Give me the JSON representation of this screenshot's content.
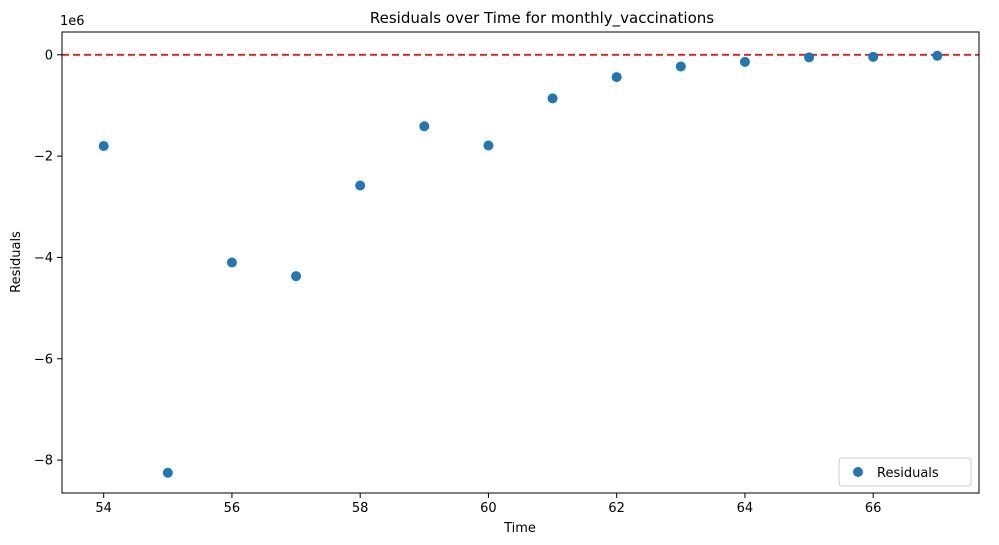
{
  "chart_data": {
    "type": "scatter",
    "title": "Residuals over Time for monthly_vaccinations",
    "xlabel": "Time",
    "ylabel": "Residuals",
    "y_offset_label": "1e6",
    "xlim": [
      53.35,
      67.65
    ],
    "ylim": [
      -8.65,
      0.45
    ],
    "x_ticks": [
      54,
      56,
      58,
      60,
      62,
      64,
      66
    ],
    "x_tick_labels": [
      "54",
      "56",
      "58",
      "60",
      "62",
      "64",
      "66"
    ],
    "y_ticks": [
      0,
      -2,
      -4,
      -6,
      -8
    ],
    "y_tick_labels": [
      "0",
      "−2",
      "−4",
      "−6",
      "−8"
    ],
    "reference_line": {
      "y": 0,
      "color": "#e31a1c",
      "style": "dashed"
    },
    "legend": {
      "position": "bottom-right",
      "entries": [
        "Residuals"
      ]
    },
    "grid": false,
    "series": [
      {
        "name": "Residuals",
        "color": "#1f77b4",
        "x": [
          54,
          55,
          56,
          57,
          58,
          59,
          60,
          61,
          62,
          63,
          64,
          65,
          66,
          67
        ],
        "y": [
          -1.8,
          -8.25,
          -4.1,
          -4.37,
          -2.58,
          -1.41,
          -1.79,
          -0.86,
          -0.44,
          -0.23,
          -0.14,
          -0.05,
          -0.04,
          -0.02
        ]
      }
    ]
  }
}
